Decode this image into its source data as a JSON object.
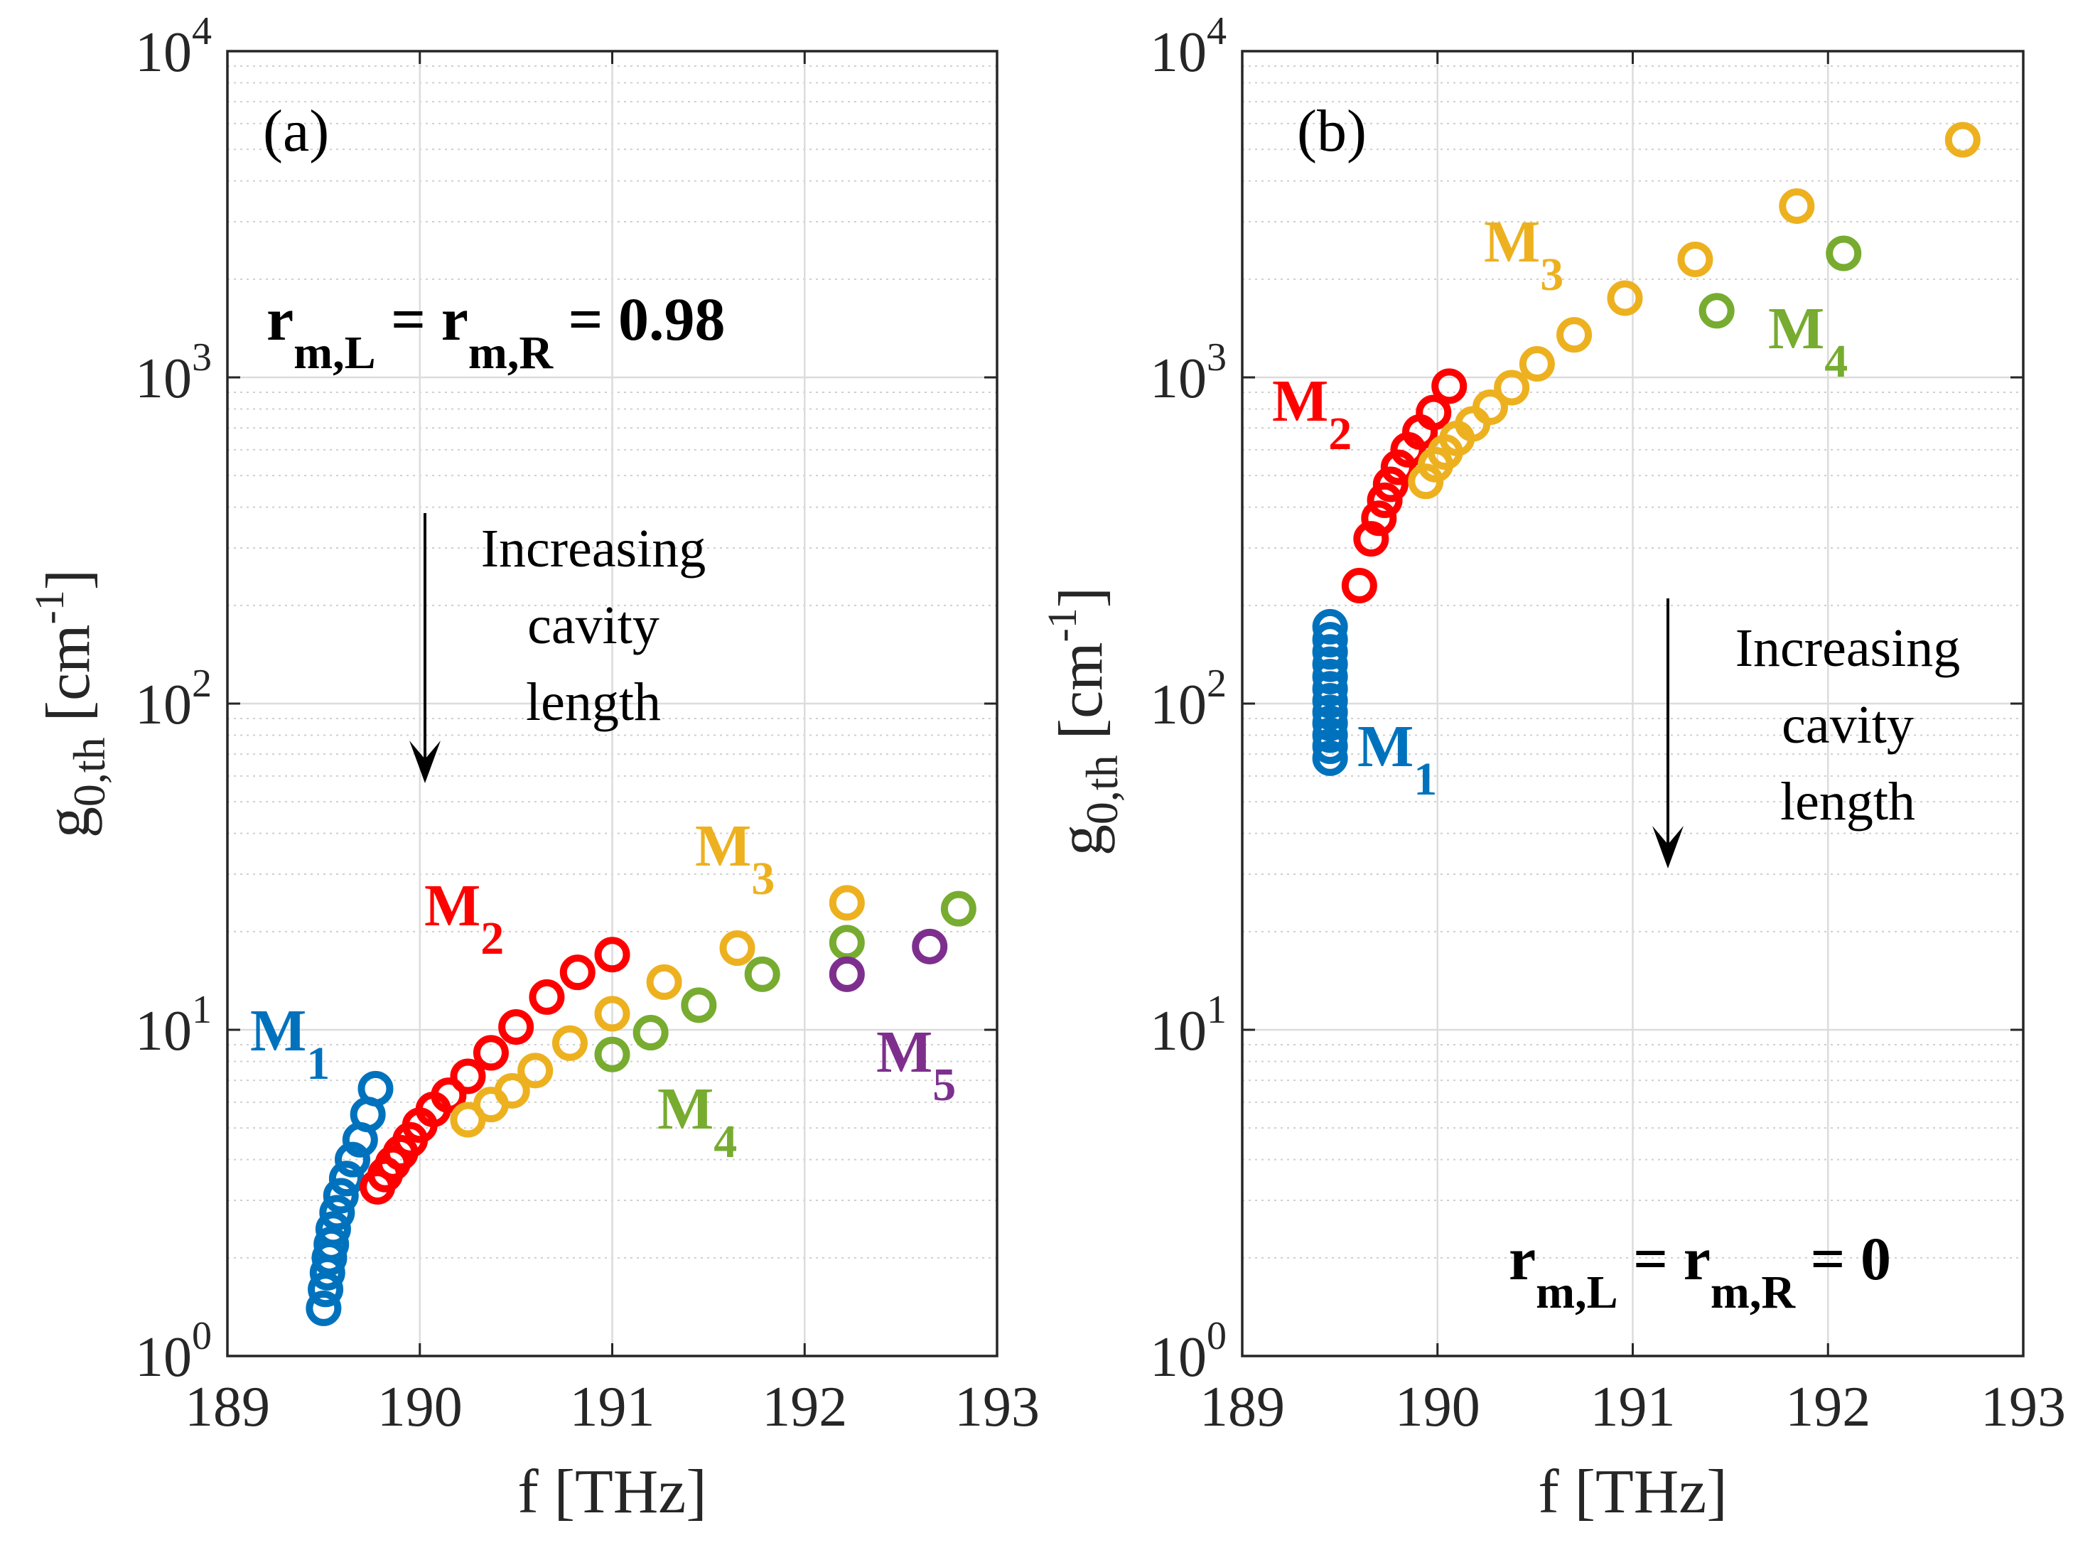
{
  "chart_data": [
    {
      "type": "scatter",
      "panel": "(a)",
      "xlabel": "f [THz]",
      "ylabel": "g0,th [cm-1]",
      "yscale": "log",
      "xlim": [
        189,
        193
      ],
      "ylim": [
        1,
        10000
      ],
      "xticks": [
        "189",
        "190",
        "191",
        "192",
        "193"
      ],
      "yticks": [
        {
          "base": "10",
          "exp": "0"
        },
        {
          "base": "10",
          "exp": "1"
        },
        {
          "base": "10",
          "exp": "2"
        },
        {
          "base": "10",
          "exp": "3"
        },
        {
          "base": "10",
          "exp": "4"
        }
      ],
      "grid": true,
      "condition": {
        "r1": "r",
        "s1": "m,L",
        "mid": " = ",
        "r2": "r",
        "s2": "m,R",
        "val": " = 0.98"
      },
      "annotation": {
        "lines": [
          "Increasing",
          "cavity",
          "length"
        ]
      },
      "series": [
        {
          "name": "M",
          "sub": "1",
          "color": "#0072BD",
          "x": [
            189.5,
            189.51,
            189.52,
            189.53,
            189.54,
            189.55,
            189.57,
            189.59,
            189.62,
            189.65,
            189.69,
            189.73,
            189.77
          ],
          "y": [
            1.4,
            1.6,
            1.8,
            2.0,
            2.2,
            2.45,
            2.75,
            3.1,
            3.5,
            4.0,
            4.6,
            5.5,
            6.6
          ]
        },
        {
          "name": "M",
          "sub": "2",
          "color": "#FF0000",
          "x": [
            189.78,
            189.82,
            189.86,
            189.9,
            189.95,
            190.0,
            190.07,
            190.15,
            190.25,
            190.37,
            190.5,
            190.66,
            190.82,
            191.0
          ],
          "y": [
            3.3,
            3.6,
            3.9,
            4.2,
            4.6,
            5.1,
            5.7,
            6.3,
            7.2,
            8.5,
            10.2,
            12.6,
            15.0,
            17.0
          ]
        },
        {
          "name": "M",
          "sub": "3",
          "color": "#EDB120",
          "x": [
            190.25,
            190.37,
            190.48,
            190.6,
            190.78,
            191.0,
            191.27,
            191.65,
            192.22
          ],
          "y": [
            5.3,
            5.9,
            6.5,
            7.5,
            9.1,
            11.2,
            14.0,
            17.8,
            24.5
          ]
        },
        {
          "name": "M",
          "sub": "4",
          "color": "#77AC30",
          "x": [
            191.0,
            191.2,
            191.45,
            191.78,
            192.22,
            192.8
          ],
          "y": [
            8.4,
            9.8,
            11.9,
            14.8,
            18.5,
            23.5
          ]
        },
        {
          "name": "M",
          "sub": "5",
          "color": "#7E2F8E",
          "x": [
            192.22,
            192.65
          ],
          "y": [
            14.8,
            18.0
          ]
        }
      ]
    },
    {
      "type": "scatter",
      "panel": "(b)",
      "xlabel": "f [THz]",
      "ylabel": "g0,th [cm-1]",
      "yscale": "log",
      "xlim": [
        189,
        193
      ],
      "ylim": [
        1,
        10000
      ],
      "xticks": [
        "189",
        "190",
        "191",
        "192",
        "193"
      ],
      "yticks": [
        {
          "base": "10",
          "exp": "0"
        },
        {
          "base": "10",
          "exp": "1"
        },
        {
          "base": "10",
          "exp": "2"
        },
        {
          "base": "10",
          "exp": "3"
        },
        {
          "base": "10",
          "exp": "4"
        }
      ],
      "grid": true,
      "condition": {
        "r1": "r",
        "s1": "m,L",
        "mid": " = ",
        "r2": "r",
        "s2": "m,R",
        "val": " = 0"
      },
      "annotation": {
        "lines": [
          "Increasing",
          "cavity",
          "length"
        ]
      },
      "series": [
        {
          "name": "M",
          "sub": "1",
          "color": "#0072BD",
          "x": [
            189.45,
            189.45,
            189.45,
            189.45,
            189.45,
            189.45,
            189.45,
            189.45,
            189.45,
            189.45,
            189.45,
            189.45
          ],
          "y": [
            68,
            74,
            80,
            87,
            94,
            102,
            111,
            121,
            132,
            144,
            157,
            172
          ]
        },
        {
          "name": "M",
          "sub": "2",
          "color": "#FF0000",
          "x": [
            189.6,
            189.66,
            189.7,
            189.73,
            189.76,
            189.8,
            189.85,
            189.91,
            189.98,
            190.06
          ],
          "y": [
            230,
            320,
            370,
            420,
            470,
            530,
            600,
            680,
            780,
            940
          ]
        },
        {
          "name": "M",
          "sub": "3",
          "color": "#EDB120",
          "x": [
            189.94,
            189.99,
            190.04,
            190.1,
            190.18,
            190.27,
            190.38,
            190.51,
            190.7,
            190.96,
            191.32,
            191.84,
            192.69
          ],
          "y": [
            480,
            540,
            590,
            650,
            720,
            810,
            930,
            1100,
            1350,
            1750,
            2300,
            3350,
            5350
          ]
        },
        {
          "name": "M",
          "sub": "4",
          "color": "#77AC30",
          "x": [
            191.43,
            192.08
          ],
          "y": [
            1600,
            2400
          ]
        }
      ]
    }
  ],
  "text_labels": {
    "x_axis_main": "f [THz]",
    "y_axis_main": "g",
    "y_axis_sub": "0,th",
    "y_axis_unit_open": "[cm",
    "y_axis_unit_exp": "-1",
    "y_axis_unit_close": "]"
  }
}
